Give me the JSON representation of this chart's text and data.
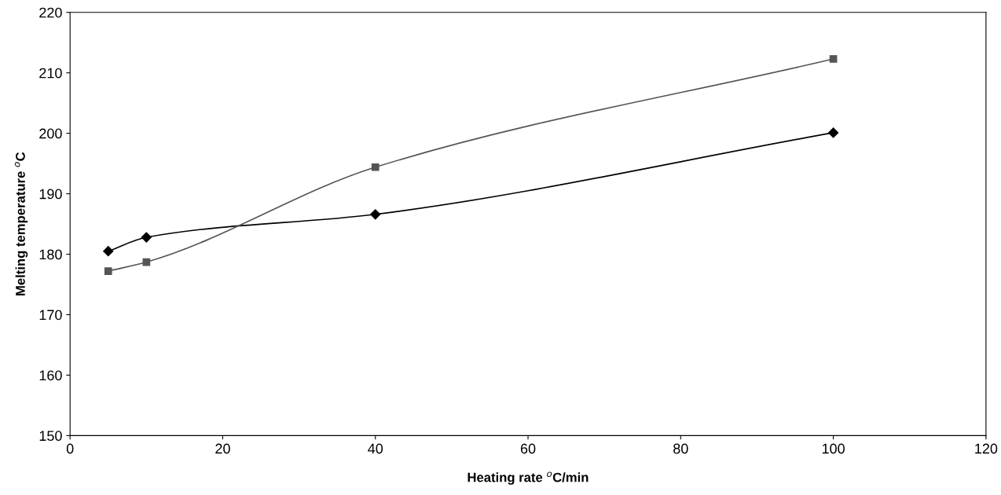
{
  "chart_data": {
    "type": "line",
    "xlabel": "Heating rate $^{o}$C/min",
    "ylabel": "Melting temperature $^{o}$C",
    "xlim": [
      0,
      120
    ],
    "xticks": [
      0,
      20,
      40,
      60,
      80,
      100,
      120
    ],
    "ylim": [
      150,
      220
    ],
    "yticks": [
      150,
      160,
      170,
      180,
      190,
      200,
      210,
      220
    ],
    "grid": false,
    "legend": false,
    "series": [
      {
        "color": "#000000",
        "marker": "diamond",
        "x": [
          5,
          10,
          40,
          100
        ],
        "values": [
          180.5,
          182.8,
          186.6,
          200.1
        ]
      },
      {
        "color": "#555555",
        "marker": "square",
        "x": [
          5,
          10,
          40,
          100
        ],
        "values": [
          177.2,
          178.7,
          194.4,
          212.3
        ]
      }
    ]
  }
}
